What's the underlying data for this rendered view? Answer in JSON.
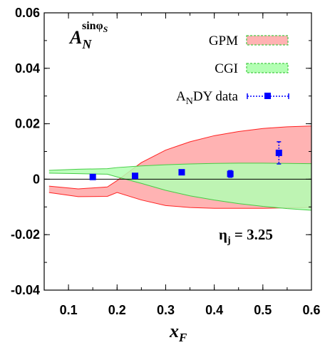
{
  "chart_data": {
    "type": "area",
    "xlabel": "x",
    "xlabel_sub": "F",
    "ylabel": "",
    "xlim": [
      0.05,
      0.6
    ],
    "ylim": [
      -0.04,
      0.06
    ],
    "x_ticks": [
      0.1,
      0.2,
      0.3,
      0.4,
      0.5,
      0.6
    ],
    "x_tick_labels": [
      "0.1",
      "0.2",
      "0.3",
      "0.4",
      "0.5",
      "0.6"
    ],
    "y_ticks": [
      -0.04,
      -0.02,
      0,
      0.02,
      0.04,
      0.06
    ],
    "y_tick_labels": [
      "-0.04",
      "-0.02",
      "0",
      "0.02",
      "0.04",
      "0.06"
    ],
    "observable": {
      "base": "A",
      "sub": "N",
      "sup": "sinφ",
      "sup_sub": "S"
    },
    "annotation": {
      "base": "η",
      "sub": "j",
      "rest": " = 3.25"
    },
    "legend_position": "top-right",
    "series": [
      {
        "name": "GPM",
        "kind": "band",
        "color": "#ffb3b3",
        "edge_color": "#ff2222",
        "x": [
          0.06,
          0.12,
          0.18,
          0.2,
          0.25,
          0.3,
          0.35,
          0.4,
          0.45,
          0.5,
          0.55,
          0.6
        ],
        "upper": [
          -0.0025,
          -0.0035,
          -0.0028,
          -0.0005,
          0.006,
          0.0105,
          0.0135,
          0.0157,
          0.0172,
          0.0183,
          0.0189,
          0.0192
        ],
        "lower": [
          -0.0048,
          -0.0063,
          -0.0062,
          -0.0048,
          -0.0075,
          -0.0095,
          -0.0102,
          -0.0105,
          -0.0105,
          -0.0105,
          -0.0103,
          -0.0102
        ]
      },
      {
        "name": "CGI",
        "kind": "band",
        "color": "#b3ffb3",
        "edge_color": "#44cc44",
        "x": [
          0.06,
          0.12,
          0.18,
          0.2,
          0.25,
          0.3,
          0.35,
          0.4,
          0.45,
          0.5,
          0.55,
          0.6
        ],
        "upper": [
          0.0032,
          0.0036,
          0.0038,
          0.0042,
          0.0048,
          0.0052,
          0.0055,
          0.0057,
          0.0058,
          0.0058,
          0.0057,
          0.0056
        ],
        "lower": [
          0.0022,
          0.002,
          0.0018,
          0.0008,
          -0.0015,
          -0.004,
          -0.006,
          -0.0075,
          -0.0088,
          -0.0098,
          -0.0106,
          -0.0112
        ]
      },
      {
        "name": "A",
        "name_sub": "N",
        "name_rest": "DY data",
        "kind": "points",
        "color": "#0000ff",
        "x": [
          0.15,
          0.237,
          0.333,
          0.433,
          0.533
        ],
        "y": [
          0.0008,
          0.0012,
          0.0025,
          0.0019,
          0.0095
        ],
        "err": [
          0.0005,
          0.0006,
          0.0007,
          0.0012,
          0.004
        ]
      }
    ]
  }
}
